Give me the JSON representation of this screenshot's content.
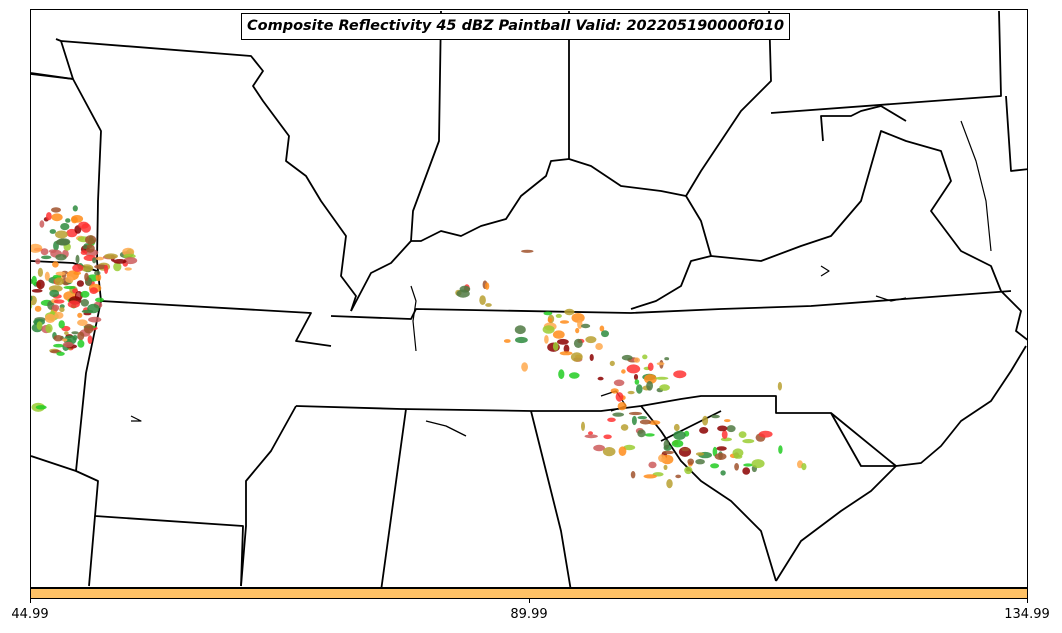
{
  "title": "Composite Reflectivity 45 dBZ Paintball Valid: 202205190000f010",
  "colorbar": {
    "color": "#ffc266",
    "ticks": [
      {
        "label": "44.99"
      },
      {
        "label": "89.99"
      },
      {
        "label": "134.99"
      }
    ]
  },
  "paintball_colors": [
    "#ff3333",
    "#ff8c1a",
    "#ffa94d",
    "#a0522d",
    "#2e8b3e",
    "#22cc22",
    "#9acd32",
    "#b8a030",
    "#8b0000",
    "#cd5c5c",
    "#4f7942"
  ]
}
